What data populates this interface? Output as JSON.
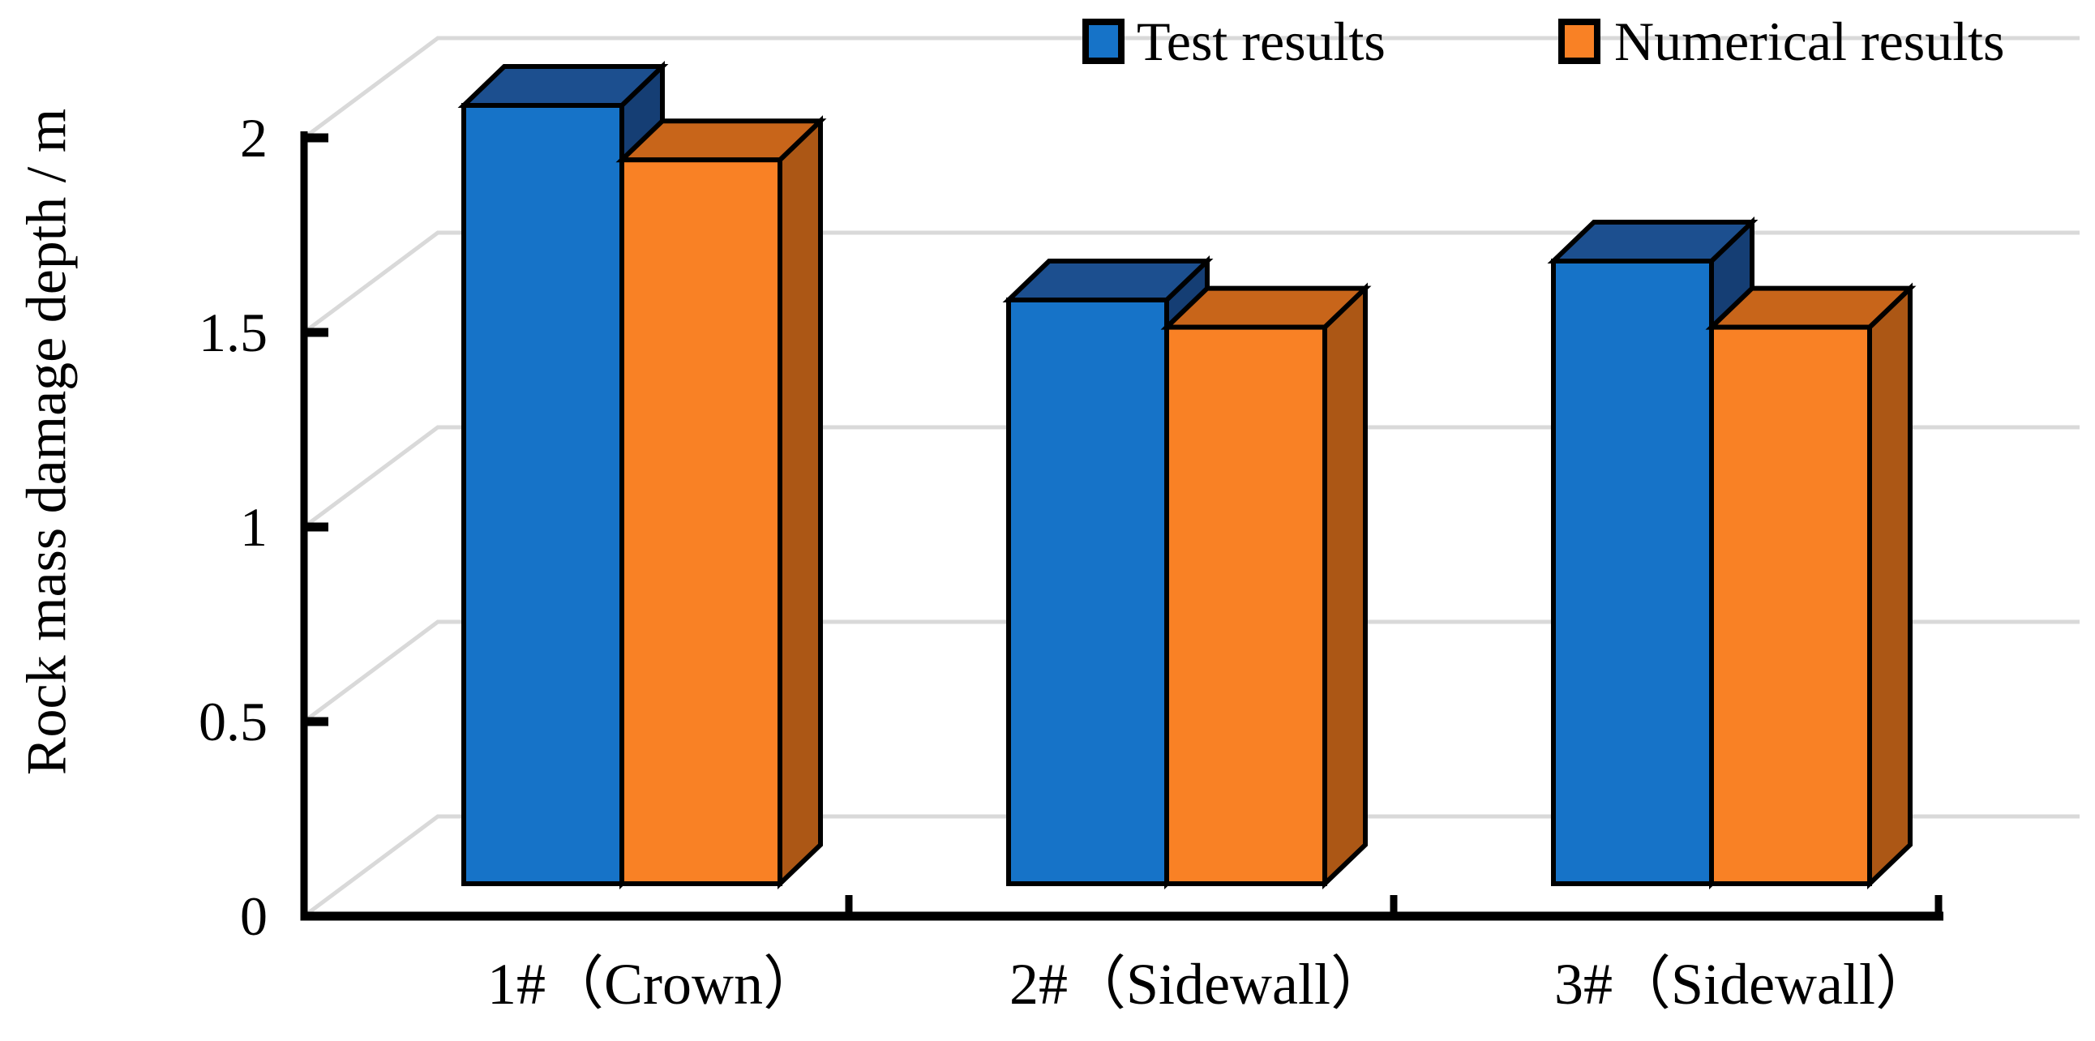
{
  "chart_data": {
    "type": "bar",
    "variant": "3d-column",
    "title": "",
    "categories": [
      "1#（Crown）",
      "2#（Sidewall）",
      "3#（Sidewall）"
    ],
    "series": [
      {
        "name": "Test results",
        "values": [
          2.0,
          1.5,
          1.6
        ],
        "color_front": "#1673C8",
        "color_top": "#1C4F8F",
        "color_side": "#153E74"
      },
      {
        "name": "Numerical results",
        "values": [
          1.86,
          1.43,
          1.43
        ],
        "color_front": "#F98125",
        "color_top": "#C8651A",
        "color_side": "#AC5715"
      }
    ],
    "xlabel": "",
    "ylabel": "Rock mass damage depth / m",
    "ylim": [
      0,
      2
    ],
    "yticks": [
      0,
      0.5,
      1,
      1.5,
      2
    ],
    "ytick_labels": [
      "0",
      "0.5",
      "1",
      "1.5",
      "2"
    ],
    "grid": true,
    "gridline_color": "#D9D9D9",
    "axis_color": "#000000",
    "bar_outline_color": "#000000",
    "background_color": "#FFFFFF",
    "legend_position": "top-right"
  }
}
